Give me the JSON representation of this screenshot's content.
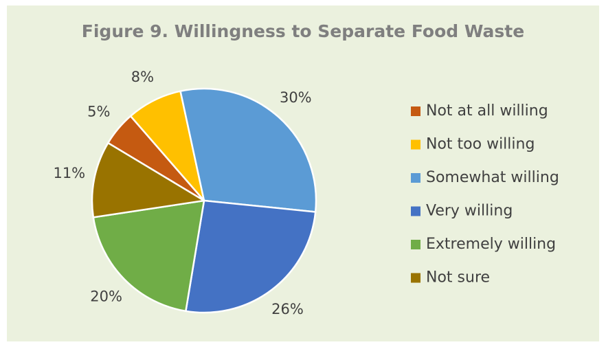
{
  "chart_data": {
    "type": "pie",
    "title": "Figure 9. Willingness to Separate Food Waste",
    "categories": [
      "Not at all willing",
      "Not too willing",
      "Somewhat willing",
      "Very willing",
      "Extremely willing",
      "Not sure"
    ],
    "values": [
      5,
      8,
      30,
      26,
      20,
      11
    ],
    "value_labels": [
      "5%",
      "8%",
      "30%",
      "26%",
      "20%",
      "11%"
    ],
    "colors": [
      "#c55a11",
      "#ffc000",
      "#5b9bd5",
      "#4472c4",
      "#70ad47",
      "#997300"
    ],
    "legend": "right"
  }
}
